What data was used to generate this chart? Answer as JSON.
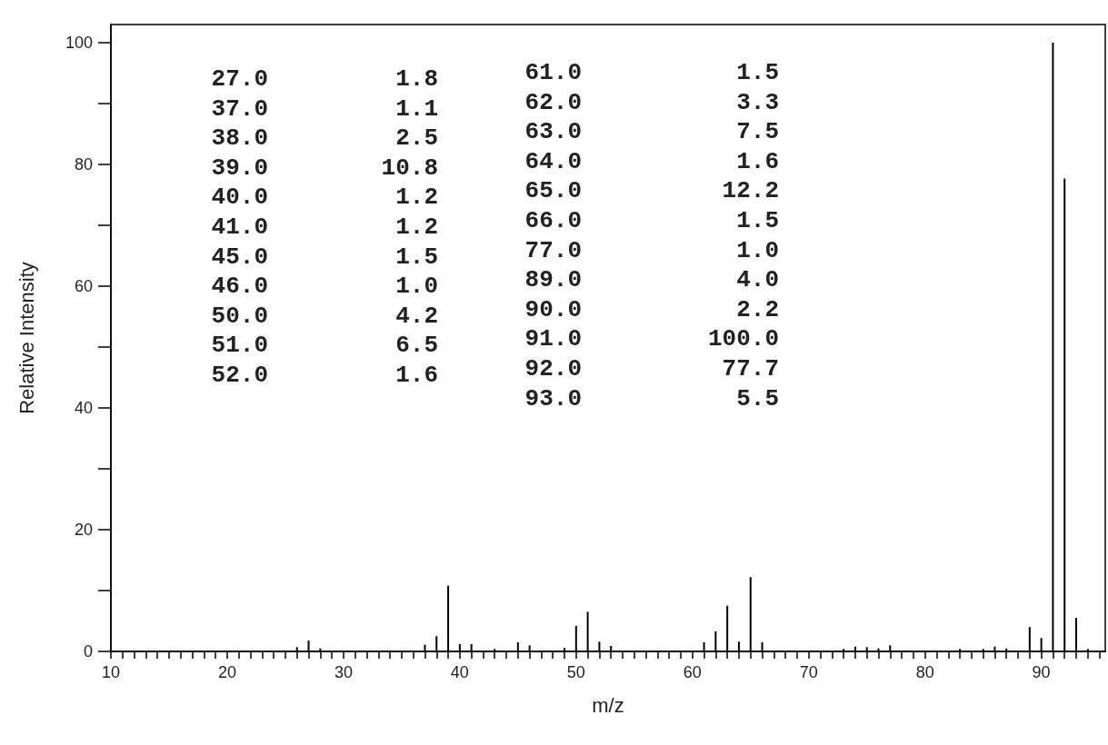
{
  "chart_data": {
    "type": "bar",
    "xlabel": "m/z",
    "ylabel": "Relative Intensity",
    "x": [
      26,
      27,
      28,
      37,
      38,
      39,
      40,
      41,
      43,
      45,
      46,
      49,
      50,
      51,
      52,
      53,
      61,
      62,
      63,
      64,
      65,
      66,
      73,
      74,
      75,
      76,
      77,
      83,
      85,
      86,
      87,
      89,
      90,
      91,
      92,
      93,
      94
    ],
    "values": [
      0.7,
      1.8,
      0.5,
      1.1,
      2.5,
      10.8,
      1.2,
      1.2,
      0.4,
      1.5,
      1.0,
      0.6,
      4.2,
      6.5,
      1.6,
      0.9,
      1.5,
      3.3,
      7.5,
      1.6,
      12.2,
      1.5,
      0.4,
      0.8,
      0.7,
      0.5,
      1.0,
      0.4,
      0.4,
      0.8,
      0.5,
      4.0,
      2.2,
      100.0,
      77.7,
      5.5,
      0.4
    ],
    "annotations": [
      "27.0",
      "1.8",
      "37.0",
      "1.1",
      "38.0",
      "2.5",
      "39.0",
      "10.8",
      "40.0",
      "1.2",
      "41.0",
      "1.2",
      "45.0",
      "1.5",
      "46.0",
      "1.0",
      "50.0",
      "4.2",
      "51.0",
      "6.5",
      "52.0",
      "1.6",
      "61.0",
      "1.5",
      "62.0",
      "3.3",
      "63.0",
      "7.5",
      "64.0",
      "1.6",
      "65.0",
      "12.2",
      "66.0",
      "1.5",
      "77.0",
      "1.0",
      "89.0",
      "4.0",
      "90.0",
      "2.2",
      "91.0",
      "100.0",
      "92.0",
      "77.7",
      "93.0",
      "5.5"
    ],
    "color": "#000000",
    "xlim": [
      10,
      95.5
    ],
    "xticks": [
      10,
      {
        "value": 11,
        "label": null
      },
      {
        "value": 12,
        "label": null
      },
      {
        "value": 13,
        "label": null
      },
      {
        "value": 14,
        "label": null
      },
      {
        "value": 15,
        "label": null
      },
      {
        "value": 16,
        "label": null
      },
      {
        "value": 17,
        "label": null
      },
      {
        "value": 18,
        "label": null
      },
      {
        "value": 19,
        "label": null
      },
      20,
      {
        "value": 21,
        "label": null
      },
      {
        "value": 22,
        "label": null
      },
      {
        "value": 23,
        "label": null
      },
      {
        "value": 24,
        "label": null
      },
      {
        "value": 25,
        "label": null
      },
      {
        "value": 26,
        "label": null
      },
      {
        "value": 27,
        "label": null
      },
      {
        "value": 28,
        "label": null
      },
      {
        "value": 29,
        "label": null
      },
      30,
      {
        "value": 31,
        "label": null
      },
      {
        "value": 32,
        "label": null
      },
      {
        "value": 33,
        "label": null
      },
      {
        "value": 34,
        "label": null
      },
      {
        "value": 35,
        "label": null
      },
      {
        "value": 36,
        "label": null
      },
      {
        "value": 37,
        "label": null
      },
      {
        "value": 38,
        "label": null
      },
      {
        "value": 39,
        "label": null
      },
      40,
      {
        "value": 41,
        "label": null
      },
      {
        "value": 42,
        "label": null
      },
      {
        "value": 43,
        "label": null
      },
      {
        "value": 44,
        "label": null
      },
      {
        "value": 45,
        "label": null
      },
      {
        "value": 46,
        "label": null
      },
      {
        "value": 47,
        "label": null
      },
      {
        "value": 48,
        "label": null
      },
      {
        "value": 49,
        "label": null
      },
      50,
      {
        "value": 51,
        "label": null
      },
      {
        "value": 52,
        "label": null
      },
      {
        "value": 53,
        "label": null
      },
      {
        "value": 54,
        "label": null
      },
      {
        "value": 55,
        "label": null
      },
      {
        "value": 56,
        "label": null
      },
      {
        "value": 57,
        "label": null
      },
      {
        "value": 58,
        "label": null
      },
      {
        "value": 59,
        "label": null
      },
      60,
      {
        "value": 61,
        "label": null
      },
      {
        "value": 62,
        "label": null
      },
      {
        "value": 63,
        "label": null
      },
      {
        "value": 64,
        "label": null
      },
      {
        "value": 65,
        "label": null
      },
      {
        "value": 66,
        "label": null
      },
      {
        "value": 67,
        "label": null
      },
      {
        "value": 68,
        "label": null
      },
      {
        "value": 69,
        "label": null
      },
      70,
      {
        "value": 71,
        "label": null
      },
      {
        "value": 72,
        "label": null
      },
      {
        "value": 73,
        "label": null
      },
      {
        "value": 74,
        "label": null
      },
      {
        "value": 75,
        "label": null
      },
      {
        "value": 76,
        "label": null
      },
      {
        "value": 77,
        "label": null
      },
      {
        "value": 78,
        "label": null
      },
      {
        "value": 79,
        "label": null
      },
      80,
      {
        "value": 81,
        "label": null
      },
      {
        "value": 82,
        "label": null
      },
      {
        "value": 83,
        "label": null
      },
      {
        "value": 84,
        "label": null
      },
      {
        "value": 85,
        "label": null
      },
      {
        "value": 86,
        "label": null
      },
      {
        "value": 87,
        "label": null
      },
      {
        "value": 88,
        "label": null
      },
      {
        "value": 89,
        "label": null
      },
      90,
      {
        "value": 91,
        "label": null
      },
      {
        "value": 92,
        "label": null
      },
      {
        "value": 93,
        "label": null
      },
      {
        "value": 94,
        "label": null
      },
      {
        "value": 95,
        "label": null
      }
    ],
    "ylim": [
      0,
      103
    ],
    "yticks": [
      0,
      {
        "value": 10,
        "label": null
      },
      20,
      {
        "value": 30,
        "label": null
      },
      40,
      {
        "value": 50,
        "label": null
      },
      60,
      {
        "value": 70,
        "label": null
      },
      80,
      {
        "value": 90,
        "label": null
      },
      100
    ],
    "grid": false
  }
}
